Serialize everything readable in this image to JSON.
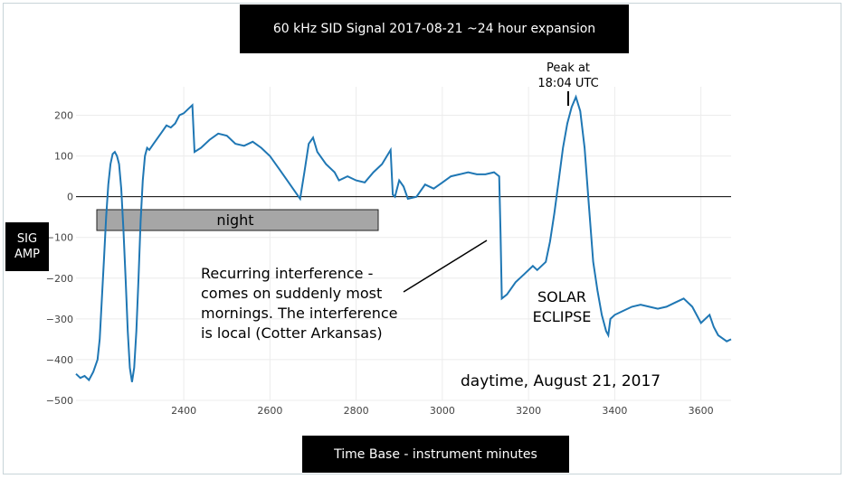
{
  "chart_data": {
    "type": "line",
    "title": "60 kHz SID Signal 2017-08-21 ~24 hour expansion",
    "xlabel": "Time Base - instrument minutes",
    "ylabel": "SIG\nAMP",
    "xlim": [
      2150,
      3670
    ],
    "ylim": [
      -500,
      270
    ],
    "xticks": [
      2400,
      2600,
      2800,
      3000,
      3200,
      3400,
      3600
    ],
    "yticks": [
      -500,
      -400,
      -300,
      -200,
      -100,
      0,
      100,
      200
    ],
    "grid": true,
    "series_color": "#1f77b4",
    "series": [
      {
        "points": [
          [
            2150,
            -435
          ],
          [
            2160,
            -445
          ],
          [
            2170,
            -440
          ],
          [
            2180,
            -450
          ],
          [
            2190,
            -430
          ],
          [
            2200,
            -400
          ],
          [
            2205,
            -350
          ],
          [
            2210,
            -250
          ],
          [
            2215,
            -150
          ],
          [
            2220,
            -50
          ],
          [
            2225,
            30
          ],
          [
            2230,
            80
          ],
          [
            2235,
            105
          ],
          [
            2240,
            110
          ],
          [
            2245,
            100
          ],
          [
            2250,
            80
          ],
          [
            2255,
            20
          ],
          [
            2260,
            -80
          ],
          [
            2265,
            -200
          ],
          [
            2270,
            -330
          ],
          [
            2275,
            -420
          ],
          [
            2280,
            -455
          ],
          [
            2285,
            -420
          ],
          [
            2290,
            -330
          ],
          [
            2295,
            -200
          ],
          [
            2300,
            -60
          ],
          [
            2305,
            40
          ],
          [
            2310,
            100
          ],
          [
            2315,
            120
          ],
          [
            2320,
            115
          ],
          [
            2330,
            130
          ],
          [
            2340,
            145
          ],
          [
            2350,
            160
          ],
          [
            2360,
            175
          ],
          [
            2370,
            170
          ],
          [
            2380,
            180
          ],
          [
            2390,
            200
          ],
          [
            2400,
            205
          ],
          [
            2410,
            215
          ],
          [
            2420,
            225
          ],
          [
            2425,
            110
          ],
          [
            2440,
            120
          ],
          [
            2460,
            140
          ],
          [
            2480,
            155
          ],
          [
            2500,
            150
          ],
          [
            2520,
            130
          ],
          [
            2540,
            125
          ],
          [
            2560,
            135
          ],
          [
            2580,
            120
          ],
          [
            2600,
            100
          ],
          [
            2620,
            70
          ],
          [
            2640,
            40
          ],
          [
            2660,
            10
          ],
          [
            2670,
            -5
          ],
          [
            2680,
            60
          ],
          [
            2690,
            130
          ],
          [
            2700,
            145
          ],
          [
            2710,
            110
          ],
          [
            2730,
            80
          ],
          [
            2750,
            60
          ],
          [
            2760,
            40
          ],
          [
            2780,
            50
          ],
          [
            2800,
            40
          ],
          [
            2820,
            35
          ],
          [
            2840,
            60
          ],
          [
            2860,
            80
          ],
          [
            2880,
            115
          ],
          [
            2885,
            5
          ],
          [
            2890,
            0
          ],
          [
            2900,
            40
          ],
          [
            2910,
            25
          ],
          [
            2920,
            -5
          ],
          [
            2940,
            0
          ],
          [
            2960,
            30
          ],
          [
            2980,
            20
          ],
          [
            3000,
            35
          ],
          [
            3020,
            50
          ],
          [
            3040,
            55
          ],
          [
            3060,
            60
          ],
          [
            3080,
            55
          ],
          [
            3100,
            55
          ],
          [
            3120,
            60
          ],
          [
            3132,
            50
          ],
          [
            3135,
            -90
          ],
          [
            3138,
            -250
          ],
          [
            3150,
            -240
          ],
          [
            3170,
            -210
          ],
          [
            3190,
            -190
          ],
          [
            3210,
            -170
          ],
          [
            3220,
            -180
          ],
          [
            3240,
            -160
          ],
          [
            3250,
            -110
          ],
          [
            3260,
            -40
          ],
          [
            3270,
            40
          ],
          [
            3280,
            120
          ],
          [
            3290,
            180
          ],
          [
            3300,
            220
          ],
          [
            3310,
            245
          ],
          [
            3320,
            210
          ],
          [
            3330,
            120
          ],
          [
            3340,
            -20
          ],
          [
            3350,
            -160
          ],
          [
            3360,
            -230
          ],
          [
            3370,
            -290
          ],
          [
            3380,
            -330
          ],
          [
            3385,
            -340
          ],
          [
            3390,
            -300
          ],
          [
            3400,
            -290
          ],
          [
            3420,
            -280
          ],
          [
            3440,
            -270
          ],
          [
            3460,
            -265
          ],
          [
            3480,
            -270
          ],
          [
            3500,
            -275
          ],
          [
            3520,
            -270
          ],
          [
            3540,
            -260
          ],
          [
            3560,
            -250
          ],
          [
            3580,
            -270
          ],
          [
            3600,
            -310
          ],
          [
            3620,
            -290
          ],
          [
            3630,
            -320
          ],
          [
            3640,
            -340
          ],
          [
            3660,
            -355
          ],
          [
            3670,
            -350
          ]
        ]
      }
    ],
    "annotations": {
      "night": "night",
      "peak": "Peak at\n18:04 UTC",
      "interference": "Recurring interference -\ncomes on suddenly most\nmornings.  The interference\nis local (Cotter Arkansas)",
      "eclipse": "SOLAR\nECLIPSE",
      "daytime": "daytime, August 21, 2017"
    }
  }
}
